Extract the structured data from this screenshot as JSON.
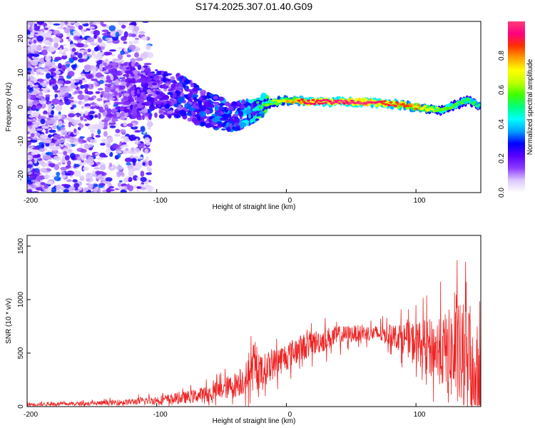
{
  "chart_data": [
    {
      "type": "heatmap",
      "title": "S174.2025.307.01.40.G09",
      "xlabel": "Height of straight line (km)",
      "ylabel": "Frequency (Hz)",
      "xlim": [
        -200,
        150
      ],
      "ylim": [
        -25,
        25
      ],
      "x_ticks": [
        -200,
        -100,
        0,
        100
      ],
      "x_tick_labels": [
        "-200",
        "-100",
        "0",
        "100"
      ],
      "y_ticks": [
        20,
        10,
        0,
        -10,
        -20
      ],
      "y_tick_labels": [
        "20",
        "10",
        "0",
        "-10",
        "-20"
      ],
      "colorbar": {
        "label": "Normalized spectral amplitude",
        "range": [
          0,
          1
        ],
        "ticks": [
          0,
          0.2,
          0.4,
          0.6,
          0.8
        ],
        "tick_labels": [
          "0.0",
          "0.2",
          "0.4",
          "0.6",
          "0.8"
        ],
        "colors": [
          "#ffffff",
          "#dcc8ff",
          "#8c3cff",
          "#5a00ff",
          "#0000ff",
          "#00a0ff",
          "#00ffff",
          "#00ff80",
          "#40ff00",
          "#c0ff00",
          "#ffff00",
          "#ffa000",
          "#ff3000",
          "#ff0080",
          "#ff3c78"
        ]
      },
      "ridge": [
        {
          "x": -200,
          "freq": 0,
          "amp": 0.05
        },
        {
          "x": -150,
          "freq": 3,
          "amp": 0.12
        },
        {
          "x": -120,
          "freq": 5,
          "amp": 0.22
        },
        {
          "x": -100,
          "freq": 4,
          "amp": 0.25
        },
        {
          "x": -80,
          "freq": 3,
          "amp": 0.3
        },
        {
          "x": -60,
          "freq": -1,
          "amp": 0.32
        },
        {
          "x": -40,
          "freq": -3,
          "amp": 0.35
        },
        {
          "x": -25,
          "freq": -1,
          "amp": 0.45
        },
        {
          "x": -15,
          "freq": 1,
          "amp": 0.6
        },
        {
          "x": 0,
          "freq": 2,
          "amp": 0.75
        },
        {
          "x": 20,
          "freq": 1.5,
          "amp": 0.95
        },
        {
          "x": 60,
          "freq": 1.5,
          "amp": 1.0
        },
        {
          "x": 80,
          "freq": 1,
          "amp": 0.9
        },
        {
          "x": 100,
          "freq": 0,
          "amp": 0.8
        },
        {
          "x": 120,
          "freq": -1,
          "amp": 0.6
        },
        {
          "x": 140,
          "freq": 2,
          "amp": 0.55
        },
        {
          "x": 150,
          "freq": 0,
          "amp": 0.5
        }
      ]
    },
    {
      "type": "line",
      "xlabel": "Height of straight line (km)",
      "ylabel": "SNR (10 * v/v)",
      "xlim": [
        -200,
        150
      ],
      "ylim": [
        0,
        1600
      ],
      "x_ticks": [
        -200,
        -100,
        0,
        100
      ],
      "x_tick_labels": [
        "-200",
        "-100",
        "0",
        "100"
      ],
      "y_ticks": [
        0,
        500,
        1000,
        1500
      ],
      "y_tick_labels": [
        "0",
        "500",
        "1000",
        "1500"
      ],
      "color": "#ee2222",
      "series": [
        {
          "name": "SNR",
          "x": [
            -200,
            -175,
            -150,
            -125,
            -100,
            -90,
            -80,
            -70,
            -60,
            -50,
            -40,
            -30,
            -25,
            -20,
            -10,
            0,
            10,
            20,
            30,
            40,
            50,
            60,
            70,
            80,
            90,
            100,
            110,
            120,
            130,
            140,
            150
          ],
          "mean": [
            20,
            25,
            30,
            40,
            60,
            70,
            80,
            100,
            120,
            160,
            200,
            280,
            350,
            320,
            400,
            470,
            540,
            590,
            630,
            660,
            680,
            690,
            680,
            670,
            640,
            600,
            560,
            520,
            480,
            420,
            380
          ],
          "spread": [
            20,
            20,
            25,
            35,
            50,
            60,
            70,
            80,
            100,
            120,
            150,
            200,
            260,
            200,
            180,
            170,
            160,
            150,
            140,
            120,
            100,
            90,
            100,
            120,
            180,
            250,
            320,
            420,
            600,
            700,
            500
          ]
        }
      ]
    }
  ]
}
